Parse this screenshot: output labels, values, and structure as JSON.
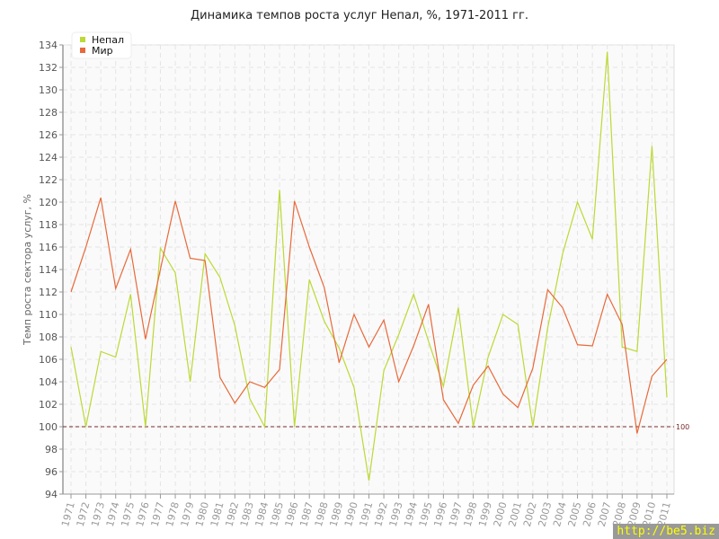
{
  "chart_data": {
    "type": "line",
    "title": "Динамика темпов роста услуг Непал, %, 1971-2011 гг.",
    "ylabel": "Темп роста сектора услуг, %",
    "xlabel": "",
    "ylim": [
      94,
      134
    ],
    "yticks": [
      94,
      96,
      98,
      100,
      102,
      104,
      106,
      108,
      110,
      112,
      114,
      116,
      118,
      120,
      122,
      124,
      126,
      128,
      130,
      132,
      134
    ],
    "grid": true,
    "legend_position": "top-left",
    "reference_line": {
      "value": 100,
      "label": "100",
      "color": "#7a2a2a"
    },
    "x": [
      1971,
      1972,
      1973,
      1974,
      1975,
      1976,
      1977,
      1978,
      1979,
      1980,
      1981,
      1982,
      1983,
      1984,
      1985,
      1986,
      1987,
      1988,
      1989,
      1990,
      1991,
      1992,
      1993,
      1994,
      1995,
      1996,
      1997,
      1998,
      1999,
      2000,
      2001,
      2002,
      2003,
      2004,
      2005,
      2006,
      2007,
      2008,
      2009,
      2010,
      2011
    ],
    "series": [
      {
        "name": "Непал",
        "color": "#bcd935",
        "values": [
          107.1,
          100,
          106.7,
          106.2,
          111.8,
          100,
          115.9,
          113.7,
          104,
          115.4,
          113.3,
          109,
          102.5,
          100,
          121.1,
          100,
          113.1,
          109.4,
          107,
          103.5,
          95.2,
          105,
          108.2,
          111.8,
          107.6,
          103.6,
          110.6,
          100,
          106.2,
          110,
          109.1,
          100,
          108.8,
          115.4,
          120,
          116.7,
          133.4,
          107.1,
          106.7,
          125,
          102.6
        ]
      },
      {
        "name": "Мир",
        "color": "#e8693a",
        "values": [
          112,
          116,
          120.4,
          112.3,
          115.8,
          107.8,
          114,
          120.1,
          115,
          114.8,
          104.4,
          102.1,
          104,
          103.5,
          105.1,
          120.1,
          116,
          112.4,
          105.7,
          110,
          107.1,
          109.5,
          104,
          107.2,
          110.9,
          102.4,
          100.3,
          103.7,
          105.4,
          102.9,
          101.7,
          105.2,
          112.2,
          110.6,
          107.3,
          107.2,
          111.8,
          109.1,
          99.4,
          104.5,
          106
        ]
      }
    ]
  },
  "watermark": "http://be5.biz"
}
